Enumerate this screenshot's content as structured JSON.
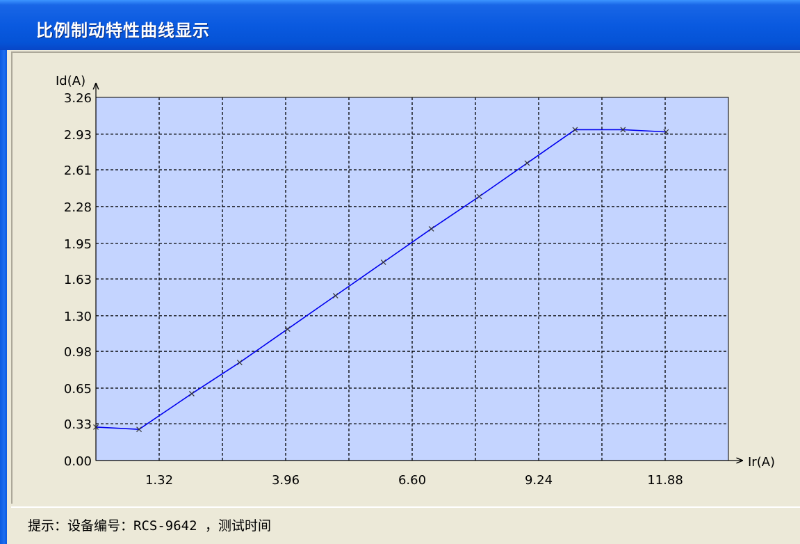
{
  "window": {
    "title": "比例制动特性曲线显示"
  },
  "status": {
    "hint": "提示：设备编号：RCS-9642 ，测试时间"
  },
  "chart_data": {
    "type": "line",
    "title": "",
    "xlabel": "Ir(A)",
    "ylabel": "Id(A)",
    "xlim": [
      0,
      13.2
    ],
    "ylim": [
      0,
      3.26
    ],
    "x_ticks": [
      "1.32",
      "3.96",
      "6.60",
      "9.24",
      "11.88"
    ],
    "x_tick_values": [
      1.32,
      3.96,
      6.6,
      9.24,
      11.88
    ],
    "y_ticks": [
      "0.00",
      "0.33",
      "0.65",
      "0.98",
      "1.30",
      "1.63",
      "1.95",
      "2.28",
      "2.61",
      "2.93",
      "3.26"
    ],
    "y_tick_values": [
      0.0,
      0.33,
      0.65,
      0.98,
      1.3,
      1.63,
      1.95,
      2.28,
      2.61,
      2.93,
      3.26
    ],
    "grid": true,
    "background_color": "#c4d4ff",
    "line_color": "#0000ee",
    "series": [
      {
        "x": [
          0.0,
          0.9,
          2.0,
          3.0,
          4.0,
          5.0,
          6.0,
          7.0,
          8.0,
          9.0,
          10.0,
          11.0,
          11.9
        ],
        "y": [
          0.3,
          0.28,
          0.6,
          0.88,
          1.18,
          1.48,
          1.78,
          2.08,
          2.37,
          2.67,
          2.97,
          2.97,
          2.95
        ]
      }
    ]
  }
}
